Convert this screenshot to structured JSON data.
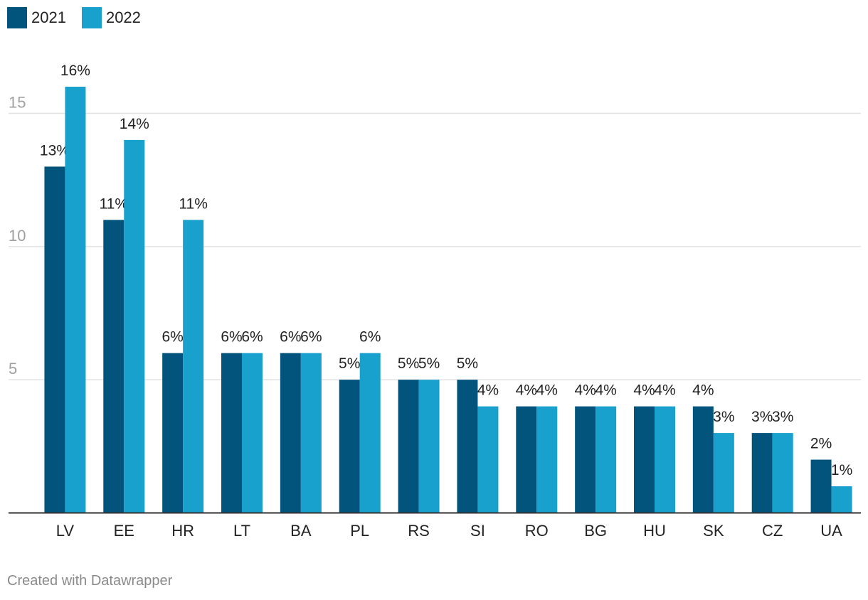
{
  "chart_data": {
    "type": "bar",
    "categories": [
      "LV",
      "EE",
      "HR",
      "LT",
      "BA",
      "PL",
      "RS",
      "SI",
      "RO",
      "BG",
      "HU",
      "SK",
      "CZ",
      "UA"
    ],
    "series": [
      {
        "name": "2021",
        "values": [
          13,
          11,
          6,
          6,
          6,
          5,
          5,
          5,
          4,
          4,
          4,
          4,
          3,
          2
        ]
      },
      {
        "name": "2022",
        "values": [
          16,
          14,
          11,
          6,
          6,
          6,
          5,
          4,
          4,
          4,
          4,
          3,
          3,
          1
        ]
      }
    ],
    "value_suffix": "%",
    "ylim": [
      0,
      16
    ],
    "yticks": [
      5,
      10,
      15
    ],
    "grid": true,
    "legend_position": "top-left",
    "colors": {
      "2021": "#03547d",
      "2022": "#18a1cd",
      "grid": "#e2e2e2",
      "axis": "#333333",
      "tick_label": "#a0a0a0"
    }
  },
  "footer": {
    "credit": "Created with Datawrapper"
  }
}
